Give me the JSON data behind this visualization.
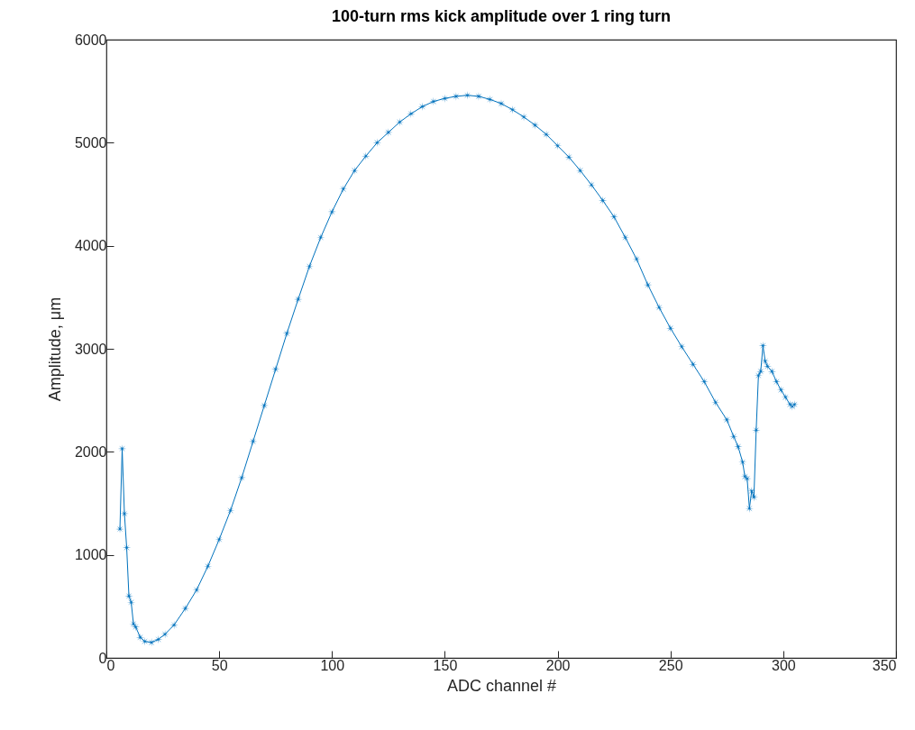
{
  "chart_data": {
    "type": "line",
    "title": "100-turn rms kick amplitude over 1 ring turn",
    "xlabel": "ADC channel #",
    "ylabel": "Amplitude, μm",
    "xlim": [
      0,
      350
    ],
    "xticks": [
      0,
      50,
      100,
      150,
      200,
      250,
      300,
      350
    ],
    "ylim": [
      0,
      6000
    ],
    "yticks": [
      0,
      1000,
      2000,
      3000,
      4000,
      5000,
      6000
    ],
    "grid": false,
    "marker": "star",
    "line_style": "solid",
    "series": [
      {
        "color": "#0072bd",
        "x": [
          6,
          7,
          8,
          9,
          10,
          11,
          12,
          13,
          15,
          17,
          20,
          23,
          26,
          30,
          35,
          40,
          45,
          50,
          55,
          60,
          65,
          70,
          75,
          80,
          85,
          90,
          95,
          100,
          105,
          110,
          115,
          120,
          125,
          130,
          135,
          140,
          145,
          150,
          155,
          160,
          165,
          170,
          175,
          180,
          185,
          190,
          195,
          200,
          205,
          210,
          215,
          220,
          225,
          230,
          235,
          240,
          245,
          250,
          255,
          260,
          265,
          270,
          275,
          278,
          280,
          282,
          283,
          284,
          285,
          286,
          287,
          288,
          289,
          290,
          291,
          292,
          293,
          295,
          297,
          299,
          301,
          303,
          304,
          305
        ],
        "values": [
          1250,
          2030,
          1400,
          1070,
          600,
          540,
          330,
          300,
          200,
          160,
          150,
          180,
          230,
          320,
          480,
          660,
          890,
          1150,
          1430,
          1750,
          2100,
          2450,
          2800,
          3150,
          3480,
          3800,
          4080,
          4330,
          4550,
          4730,
          4870,
          5000,
          5100,
          5200,
          5280,
          5350,
          5400,
          5430,
          5450,
          5460,
          5450,
          5420,
          5380,
          5320,
          5250,
          5170,
          5080,
          4970,
          4860,
          4730,
          4590,
          4440,
          4280,
          4080,
          3870,
          3620,
          3400,
          3200,
          3020,
          2850,
          2680,
          2480,
          2310,
          2150,
          2050,
          1900,
          1760,
          1740,
          1450,
          1620,
          1560,
          2210,
          2740,
          2780,
          3030,
          2880,
          2830,
          2780,
          2680,
          2600,
          2530,
          2460,
          2440,
          2460
        ]
      }
    ]
  }
}
